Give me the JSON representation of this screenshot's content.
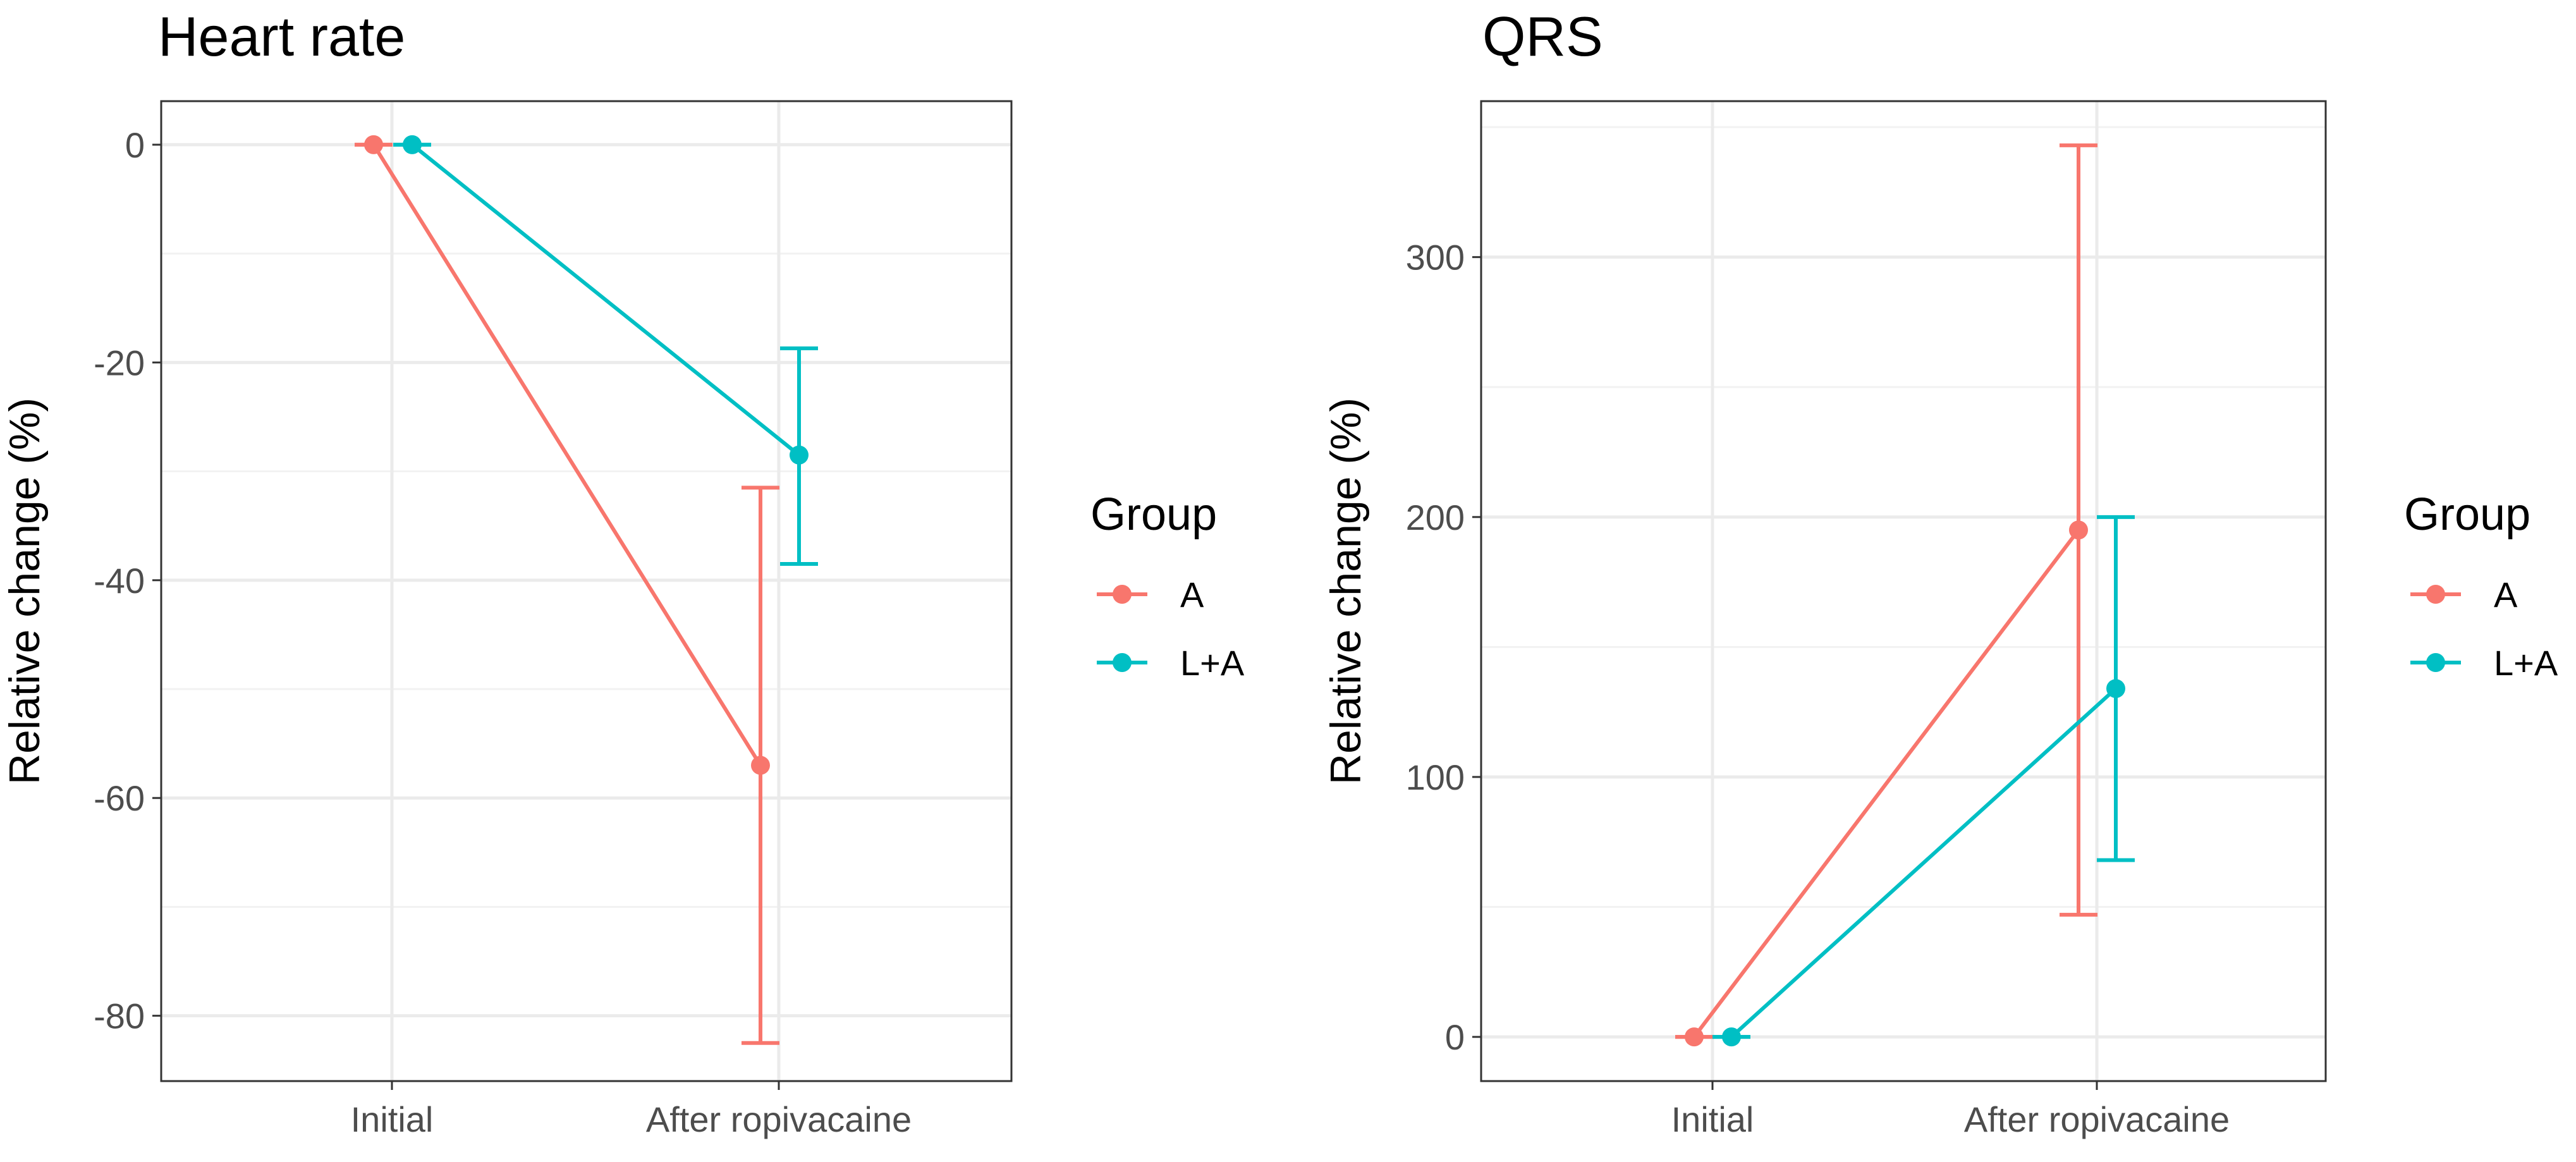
{
  "chart_data": [
    {
      "type": "line",
      "title": "Heart rate",
      "xlabel": "",
      "ylabel": "Relative change (%)",
      "categories": [
        "Initial",
        "After ropivacaine"
      ],
      "ylim": [
        -86,
        4
      ],
      "yticks": [
        0,
        -20,
        -40,
        -60,
        -80
      ],
      "ytick_labels": [
        "0",
        "-20",
        "-40",
        "-60",
        "-80"
      ],
      "grid": true,
      "legend": {
        "title": "Group",
        "placement": "right",
        "entries": [
          "A",
          "L+A"
        ]
      },
      "series": [
        {
          "name": "A",
          "color": "#F8766D",
          "values": [
            0,
            -57
          ],
          "err_low": [
            0,
            -82.5
          ],
          "err_high": [
            0,
            -31.5
          ]
        },
        {
          "name": "L+A",
          "color": "#00BFC4",
          "values": [
            0,
            -28.5
          ],
          "err_low": [
            0,
            -38.5
          ],
          "err_high": [
            0,
            -18.7
          ]
        }
      ]
    },
    {
      "type": "line",
      "title": "QRS",
      "xlabel": "",
      "ylabel": "Relative change (%)",
      "categories": [
        "Initial",
        "After ropivacaine"
      ],
      "ylim": [
        -17,
        360
      ],
      "yticks": [
        0,
        100,
        200,
        300
      ],
      "ytick_labels": [
        "0",
        "100",
        "200",
        "300"
      ],
      "grid": true,
      "legend": {
        "title": "Group",
        "placement": "right",
        "entries": [
          "A",
          "L+A"
        ]
      },
      "series": [
        {
          "name": "A",
          "color": "#F8766D",
          "values": [
            0,
            195
          ],
          "err_low": [
            0,
            47
          ],
          "err_high": [
            0,
            343
          ]
        },
        {
          "name": "L+A",
          "color": "#00BFC4",
          "values": [
            0,
            134
          ],
          "err_low": [
            0,
            68
          ],
          "err_high": [
            0,
            200
          ]
        }
      ]
    }
  ]
}
